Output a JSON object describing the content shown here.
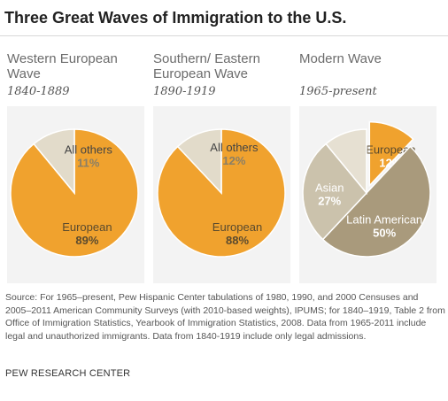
{
  "title": "Three Great Waves of Immigration to the U.S.",
  "chart_data": [
    {
      "type": "pie",
      "title": "Western European Wave",
      "period": "1840-1889",
      "slices": [
        {
          "label": "European",
          "value": 89,
          "value_label": "89%",
          "color": "#f0a22e"
        },
        {
          "label": "All others",
          "value": 11,
          "value_label": "11%",
          "color": "#e2dbca"
        }
      ]
    },
    {
      "type": "pie",
      "title": "Southern/ Eastern European Wave",
      "period": "1890-1919",
      "slices": [
        {
          "label": "European",
          "value": 88,
          "value_label": "88%",
          "color": "#f0a22e"
        },
        {
          "label": "All others",
          "value": 12,
          "value_label": "12%",
          "color": "#e2dbca"
        }
      ]
    },
    {
      "type": "pie",
      "title": "Modern Wave",
      "period": "1965-present",
      "slices": [
        {
          "label": "European",
          "value": 12,
          "value_label": "12%",
          "color": "#f0a22e",
          "exploded": true
        },
        {
          "label": "Latin American",
          "value": 50,
          "value_label": "50%",
          "color": "#a99a7c"
        },
        {
          "label": "Asian",
          "value": 27,
          "value_label": "27%",
          "color": "#cbc2ac"
        },
        {
          "label": "",
          "value": 11,
          "value_label": "",
          "color": "#e6e0d2"
        }
      ]
    }
  ],
  "source": "Source: For 1965–present, Pew Hispanic Center tabulations of 1980, 1990, and 2000 Censuses and 2005–2011 American Community Surveys (with 2010-based weights), IPUMS; for 1840–1919, Table 2 from Office of Immigration Statistics, Yearbook of Immigration Statistics, 2008. Data from 1965-2011 include legal and unauthorized immigrants. Data from 1840-1919 include only legal admissions.",
  "credit": "PEW RESEARCH CENTER"
}
